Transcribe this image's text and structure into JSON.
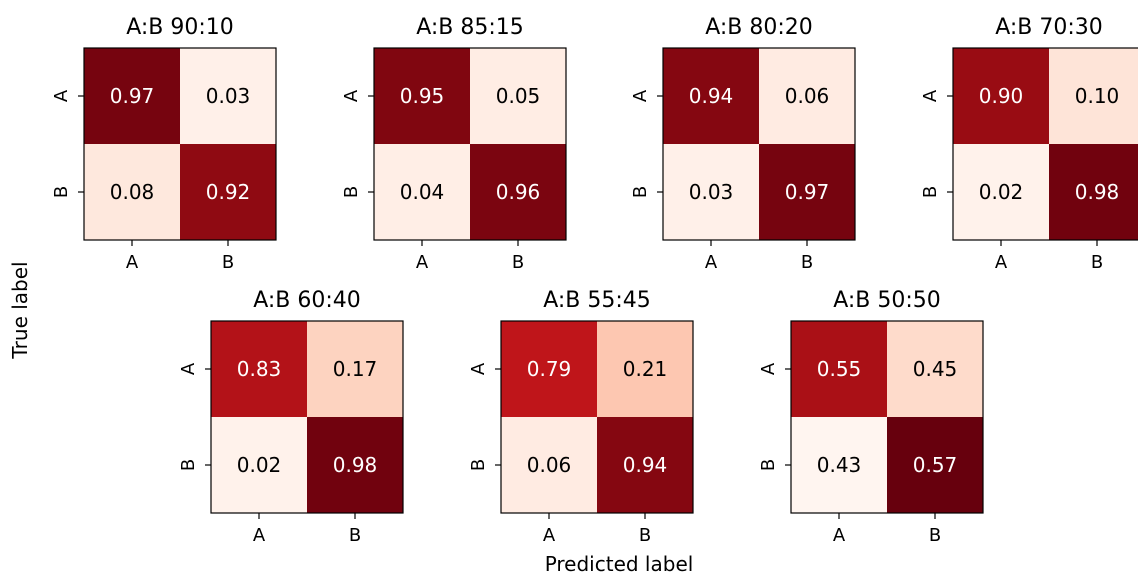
{
  "figure": {
    "ylabel": "True label",
    "xlabel": "Predicted label"
  },
  "chart_data": [
    {
      "type": "heatmap",
      "title": "A:B 90:10",
      "x_categories": [
        "A",
        "B"
      ],
      "y_categories": [
        "A",
        "B"
      ],
      "values": [
        [
          0.97,
          0.03
        ],
        [
          0.08,
          0.92
        ]
      ],
      "labels": [
        [
          "0.97",
          "0.03"
        ],
        [
          "0.08",
          "0.92"
        ]
      ],
      "colormap": "Reds",
      "vmin": 0,
      "vmax": 1
    },
    {
      "type": "heatmap",
      "title": "A:B 85:15",
      "x_categories": [
        "A",
        "B"
      ],
      "y_categories": [
        "A",
        "B"
      ],
      "values": [
        [
          0.95,
          0.05
        ],
        [
          0.04,
          0.96
        ]
      ],
      "labels": [
        [
          "0.95",
          "0.05"
        ],
        [
          "0.04",
          "0.96"
        ]
      ],
      "colormap": "Reds",
      "vmin": 0,
      "vmax": 1
    },
    {
      "type": "heatmap",
      "title": "A:B 80:20",
      "x_categories": [
        "A",
        "B"
      ],
      "y_categories": [
        "A",
        "B"
      ],
      "values": [
        [
          0.94,
          0.06
        ],
        [
          0.03,
          0.97
        ]
      ],
      "labels": [
        [
          "0.94",
          "0.06"
        ],
        [
          "0.03",
          "0.97"
        ]
      ],
      "colormap": "Reds",
      "vmin": 0,
      "vmax": 1
    },
    {
      "type": "heatmap",
      "title": "A:B 70:30",
      "x_categories": [
        "A",
        "B"
      ],
      "y_categories": [
        "A",
        "B"
      ],
      "values": [
        [
          0.9,
          0.1
        ],
        [
          0.02,
          0.98
        ]
      ],
      "labels": [
        [
          "0.90",
          "0.10"
        ],
        [
          "0.02",
          "0.98"
        ]
      ],
      "colormap": "Reds",
      "vmin": 0,
      "vmax": 1
    },
    {
      "type": "heatmap",
      "title": "A:B 60:40",
      "x_categories": [
        "A",
        "B"
      ],
      "y_categories": [
        "A",
        "B"
      ],
      "values": [
        [
          0.83,
          0.17
        ],
        [
          0.02,
          0.98
        ]
      ],
      "labels": [
        [
          "0.83",
          "0.17"
        ],
        [
          "0.02",
          "0.98"
        ]
      ],
      "colormap": "Reds",
      "vmin": 0,
      "vmax": 1
    },
    {
      "type": "heatmap",
      "title": "A:B 55:45",
      "x_categories": [
        "A",
        "B"
      ],
      "y_categories": [
        "A",
        "B"
      ],
      "values": [
        [
          0.79,
          0.21
        ],
        [
          0.06,
          0.94
        ]
      ],
      "labels": [
        [
          "0.79",
          "0.21"
        ],
        [
          "0.06",
          "0.94"
        ]
      ],
      "colormap": "Reds",
      "vmin": 0,
      "vmax": 1
    },
    {
      "type": "heatmap",
      "title": "A:B 50:50",
      "x_categories": [
        "A",
        "B"
      ],
      "y_categories": [
        "A",
        "B"
      ],
      "values": [
        [
          0.55,
          0.45
        ],
        [
          0.43,
          0.57
        ]
      ],
      "labels": [
        [
          "0.55",
          "0.45"
        ],
        [
          "0.43",
          "0.57"
        ]
      ],
      "colormap": "Reds",
      "vmin": 0.43,
      "vmax": 0.57
    }
  ]
}
